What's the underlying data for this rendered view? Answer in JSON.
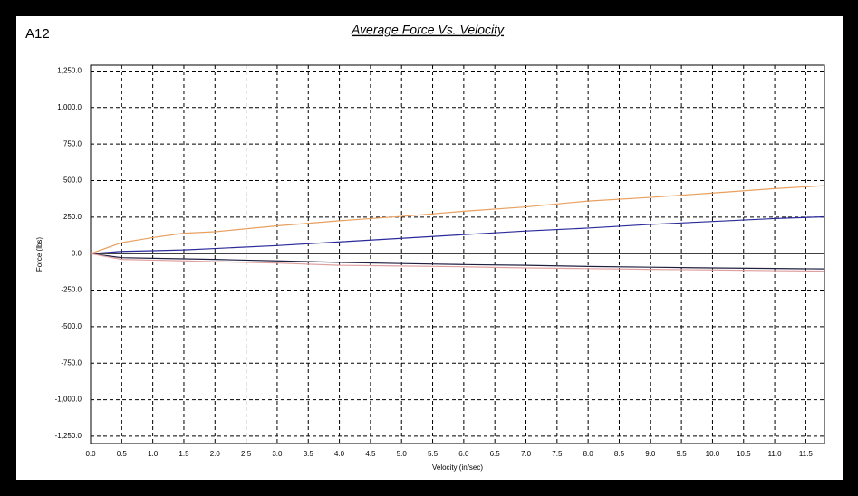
{
  "label": "A12",
  "chart_data": {
    "type": "line",
    "title": "Average Force Vs. Velocity",
    "x_label": "Velocity (in/sec)",
    "y_label": "Force (lbs)",
    "x": [
      0,
      0.5,
      1,
      1.5,
      2,
      3,
      4,
      5,
      6,
      7,
      8,
      9,
      10,
      11,
      11.8
    ],
    "series": [
      {
        "color": "#e8a060",
        "values": [
          0,
          75,
          110,
          140,
          150,
          190,
          225,
          255,
          290,
          320,
          360,
          385,
          415,
          445,
          465
        ]
      },
      {
        "color": "#2a2a9a",
        "values": [
          0,
          15,
          20,
          25,
          35,
          55,
          80,
          105,
          130,
          155,
          175,
          200,
          220,
          240,
          252
        ]
      },
      {
        "color": "#202040",
        "values": [
          0,
          -28,
          -32,
          -36,
          -40,
          -50,
          -60,
          -68,
          -75,
          -80,
          -88,
          -93,
          -98,
          -102,
          -105
        ]
      },
      {
        "color": "#e0a0a0",
        "values": [
          0,
          -40,
          -45,
          -50,
          -55,
          -65,
          -80,
          -85,
          -90,
          -98,
          -103,
          -108,
          -112,
          -117,
          -120
        ]
      }
    ],
    "xlim": [
      0,
      11.8
    ],
    "ylim": [
      -1300,
      1290
    ],
    "grid": true,
    "xticks": [
      {
        "value": 0,
        "label": "0.0"
      },
      {
        "value": 0.5,
        "label": "0.5"
      },
      {
        "value": 1,
        "label": "1.0"
      },
      {
        "value": 1.5,
        "label": "1.5"
      },
      {
        "value": 2,
        "label": "2.0"
      },
      {
        "value": 2.5,
        "label": "2.5"
      },
      {
        "value": 3,
        "label": "3.0"
      },
      {
        "value": 3.5,
        "label": "3.5"
      },
      {
        "value": 4,
        "label": "4.0"
      },
      {
        "value": 4.5,
        "label": "4.5"
      },
      {
        "value": 5,
        "label": "5.0"
      },
      {
        "value": 5.5,
        "label": "5.5"
      },
      {
        "value": 6,
        "label": "6.0"
      },
      {
        "value": 6.5,
        "label": "6.5"
      },
      {
        "value": 7,
        "label": "7.0"
      },
      {
        "value": 7.5,
        "label": "7.5"
      },
      {
        "value": 8,
        "label": "8.0"
      },
      {
        "value": 8.5,
        "label": "8.5"
      },
      {
        "value": 9,
        "label": "9.0"
      },
      {
        "value": 9.5,
        "label": "9.5"
      },
      {
        "value": 10,
        "label": "10.0"
      },
      {
        "value": 10.5,
        "label": "10.5"
      },
      {
        "value": 11,
        "label": "11.0"
      },
      {
        "value": 11.5,
        "label": "11.5"
      }
    ],
    "yticks": [
      {
        "value": -1250,
        "label": "-1,250.0"
      },
      {
        "value": -1000,
        "label": "-1,000.0"
      },
      {
        "value": -750,
        "label": "-750.0"
      },
      {
        "value": -500,
        "label": "-500.0"
      },
      {
        "value": -250,
        "label": "-250.0"
      },
      {
        "value": 0,
        "label": "0.0"
      },
      {
        "value": 250,
        "label": "250.0"
      },
      {
        "value": 500,
        "label": "500.0"
      },
      {
        "value": 750,
        "label": "750.0"
      },
      {
        "value": 1000,
        "label": "1,000.0"
      },
      {
        "value": 1250,
        "label": "1,250.0"
      }
    ]
  }
}
